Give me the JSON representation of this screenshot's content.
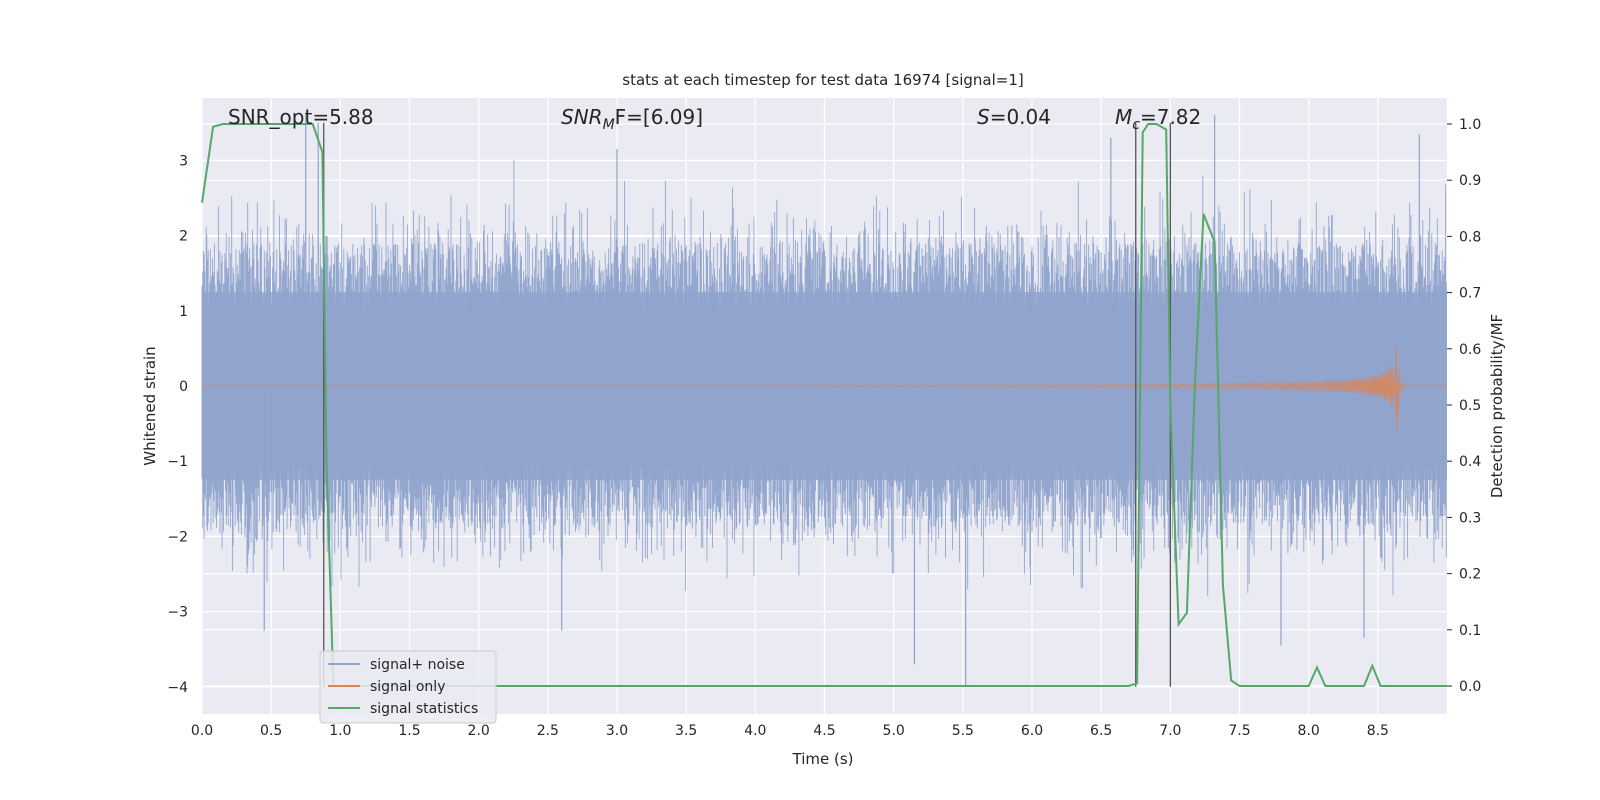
{
  "chart_data": {
    "type": "line",
    "title": "stats at each timestep for test data 16974 [signal=1]",
    "xlabel": "Time (s)",
    "ylabel_left": "Whitened strain",
    "ylabel_right": "Detection probability/MF",
    "xlim": [
      0.0,
      9.0
    ],
    "ylim_left": [
      -4.3,
      3.75
    ],
    "ylim_right": [
      -0.05,
      1.05
    ],
    "x_ticks": [
      "0.0",
      "0.5",
      "1.0",
      "1.5",
      "2.0",
      "2.5",
      "3.0",
      "3.5",
      "4.0",
      "4.5",
      "5.0",
      "5.5",
      "6.0",
      "6.5",
      "7.0",
      "7.5",
      "8.0",
      "8.5"
    ],
    "y_ticks_left": [
      "−4",
      "−3",
      "−2",
      "−1",
      "0",
      "1",
      "2",
      "3"
    ],
    "y_ticks_right": [
      "0.0",
      "0.1",
      "0.2",
      "0.3",
      "0.4",
      "0.5",
      "0.6",
      "0.7",
      "0.8",
      "0.9",
      "1.0"
    ],
    "grid": true,
    "annotations": {
      "snr_opt": "SNR_opt=5.88",
      "snr_mf_main": "SNR",
      "snr_mf_sub": "M",
      "snr_mf_rest": "F=[6.09]",
      "s_main": "S",
      "s_rest": "=0.04",
      "mc_main": "M",
      "mc_sub": "c",
      "mc_rest": "=7.82"
    },
    "legend": {
      "placement": "lower-left",
      "entries": [
        "signal+ noise",
        "signal only",
        "signal statistics"
      ]
    },
    "colors": {
      "noise": "#8fa3cc",
      "signal": "#dd8452",
      "stats": "#55a868",
      "vline": "#555555",
      "background": "#eaeaf2",
      "grid": "#ffffff"
    },
    "series": [
      {
        "name": "signal+ noise",
        "axis": "left",
        "description_level": "noise amplitude mostly within -2.0..2.2, peaks near 3.6 / -4.0",
        "envelope_level": 1.9
      },
      {
        "name": "signal only",
        "axis": "left",
        "chirp_start": 4.5,
        "chirp_peak_time": 8.65,
        "chirp_peak_amplitude": 0.68
      },
      {
        "name": "signal statistics",
        "axis": "right",
        "x": [
          0.0,
          0.08,
          0.15,
          0.3,
          0.5,
          0.7,
          0.8,
          0.87,
          0.9,
          0.95,
          1.0,
          2.0,
          3.0,
          4.0,
          5.0,
          6.0,
          6.7,
          6.76,
          6.8,
          6.84,
          6.9,
          6.97,
          7.0,
          7.06,
          7.12,
          7.18,
          7.24,
          7.32,
          7.38,
          7.44,
          7.5,
          7.56,
          7.6,
          8.0,
          8.06,
          8.12,
          8.4,
          8.46,
          8.52,
          8.6,
          9.0
        ],
        "values": [
          0.86,
          0.995,
          1.0,
          1.0,
          1.0,
          1.0,
          1.0,
          0.95,
          0.4,
          0.0,
          0.0,
          0.0,
          0.0,
          0.0,
          0.0,
          0.0,
          0.0,
          0.005,
          0.985,
          1.0,
          1.0,
          0.99,
          0.5,
          0.11,
          0.13,
          0.55,
          0.84,
          0.79,
          0.18,
          0.01,
          0.0,
          0.0,
          0.0,
          0.0,
          0.033,
          0.0,
          0.0,
          0.036,
          0.0,
          0.0,
          0.0
        ]
      }
    ],
    "vlines": [
      {
        "x": 0.88,
        "y_from": -4.0,
        "y_to": 3.5
      },
      {
        "x": 6.75,
        "y_from": -4.0,
        "y_to": 3.5
      },
      {
        "x": 7.0,
        "y_from": -4.0,
        "y_to": 3.5
      }
    ]
  }
}
